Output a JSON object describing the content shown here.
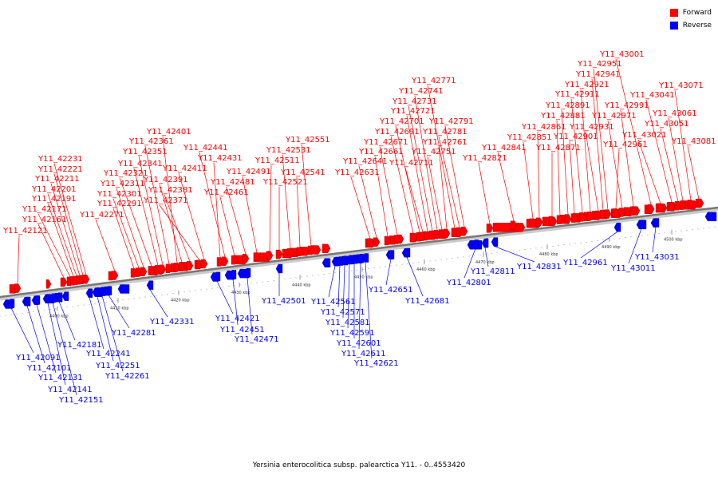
{
  "legend": {
    "forward_label": "Forward",
    "reverse_label": "Reverse",
    "forward_color": "#ff0000",
    "reverse_color": "#0000ff"
  },
  "caption": "Yersinia enterocolitica subsp. palearctica Y11. - 0..4553420",
  "scale_ticks": [
    "4400 kbp",
    "4410 kbp",
    "4420 kbp",
    "4430 kbp",
    "4440 kbp",
    "4450 kbp",
    "4460 kbp",
    "4470 kbp",
    "4480 kbp",
    "4490 kbp",
    "4500 kbp"
  ],
  "forward_genes": [
    "Y11_42121",
    "Y11_42161",
    "Y11_42171",
    "Y11_42191",
    "Y11_42201",
    "Y11_42211",
    "Y11_42221",
    "Y11_42231",
    "Y11_42271",
    "Y11_42291",
    "Y11_42301",
    "Y11_42311",
    "Y11_42321",
    "Y11_42341",
    "Y11_42351",
    "Y11_42361",
    "Y11_42401",
    "Y11_42391",
    "Y11_42381",
    "Y11_42371",
    "Y11_42411",
    "Y11_42431",
    "Y11_42441",
    "Y11_42461",
    "Y11_42481",
    "Y11_42491",
    "Y11_42511",
    "Y11_42521",
    "Y11_42531",
    "Y11_42541",
    "Y11_42551",
    "Y11_42631",
    "Y11_42641",
    "Y11_42661",
    "Y11_42671",
    "Y11_42691",
    "Y11_42701",
    "Y11_42711",
    "Y11_42721",
    "Y11_42731",
    "Y11_42741",
    "Y11_42751",
    "Y11_42761",
    "Y11_42771",
    "Y11_42781",
    "Y11_42791",
    "Y11_42821",
    "Y11_42841",
    "Y11_42851",
    "Y11_42861",
    "Y11_42871",
    "Y11_42881",
    "Y11_42891",
    "Y11_42901",
    "Y11_42911",
    "Y11_42921",
    "Y11_42931",
    "Y11_42941",
    "Y11_42951",
    "Y11_42961",
    "Y11_42971",
    "Y11_42991",
    "Y11_43001",
    "Y11_43021",
    "Y11_43041",
    "Y11_43051",
    "Y11_43061",
    "Y11_43071",
    "Y11_43081"
  ],
  "reverse_genes": [
    "Y11_42091",
    "Y11_42101",
    "Y11_42131",
    "Y11_42141",
    "Y11_42151",
    "Y11_42181",
    "Y11_42241",
    "Y11_42251",
    "Y11_42261",
    "Y11_42281",
    "Y11_42331",
    "Y11_42421",
    "Y11_42451",
    "Y11_42471",
    "Y11_42501",
    "Y11_42561",
    "Y11_42571",
    "Y11_42581",
    "Y11_42591",
    "Y11_42601",
    "Y11_42611",
    "Y11_42621",
    "Y11_42651",
    "Y11_42681",
    "Y11_42801",
    "Y11_42811",
    "Y11_42831",
    "Y11_42961",
    "Y11_43011",
    "Y11_43031"
  ]
}
